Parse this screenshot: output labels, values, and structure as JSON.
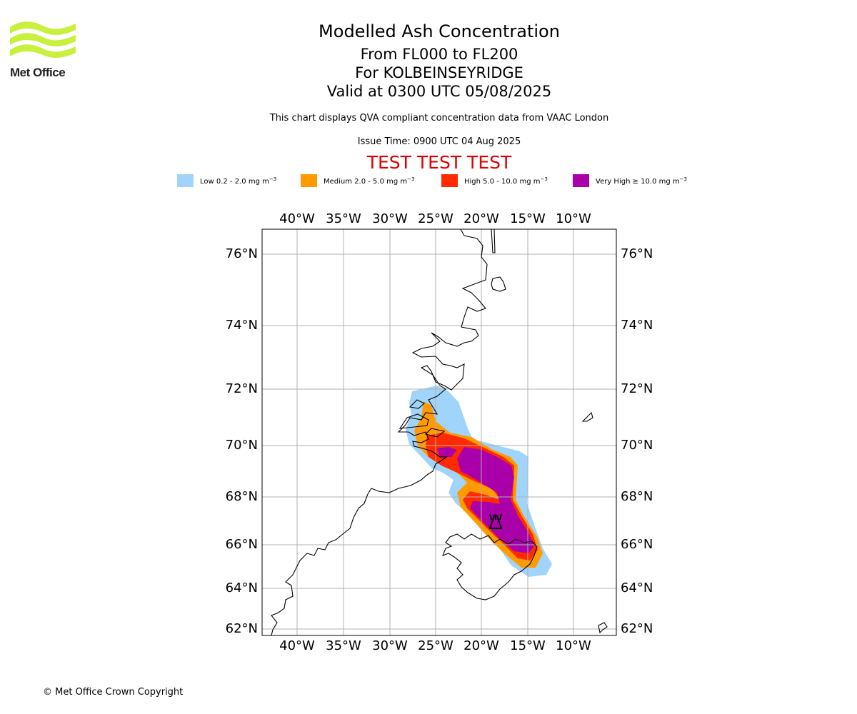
{
  "header": {
    "title": "Modelled Ash Concentration",
    "levels": "From FL000 to FL200",
    "location": "For KOLBEINSEYRIDGE",
    "valid": "Valid at 0300 UTC 05/08/2025",
    "subtitle": "This chart displays QVA compliant concentration data from VAAC London",
    "issue_time": "Issue Time: 0900 UTC 04 Aug 2025",
    "test_banner": "TEST TEST TEST"
  },
  "logo": {
    "text": "Met Office",
    "color": "#c8f03c",
    "icon": "met-office-waves-icon"
  },
  "legend": {
    "items": [
      {
        "label": "Low 0.2 - 2.0 mg m",
        "unit_sup": "−3",
        "color": "#a0d4fa"
      },
      {
        "label": "Medium 2.0 - 5.0 mg m",
        "unit_sup": "−3",
        "color": "#ff9a00"
      },
      {
        "label": "High 5.0 - 10.0 mg m",
        "unit_sup": "−3",
        "color": "#ff2a00"
      },
      {
        "label": "Very High  ≥  10.0 mg m",
        "unit_sup": "−3",
        "color": "#aa00aa"
      }
    ]
  },
  "map": {
    "lon_ticks": [
      "40°W",
      "35°W",
      "30°W",
      "25°W",
      "20°W",
      "15°W",
      "10°W"
    ],
    "lat_ticks": [
      "76°N",
      "74°N",
      "72°N",
      "70°N",
      "68°N",
      "66°N",
      "64°N",
      "62°N"
    ],
    "volcano_icon": "volcano-icon",
    "grid": true
  },
  "footer": {
    "copyright": "© Met Office Crown Copyright"
  }
}
